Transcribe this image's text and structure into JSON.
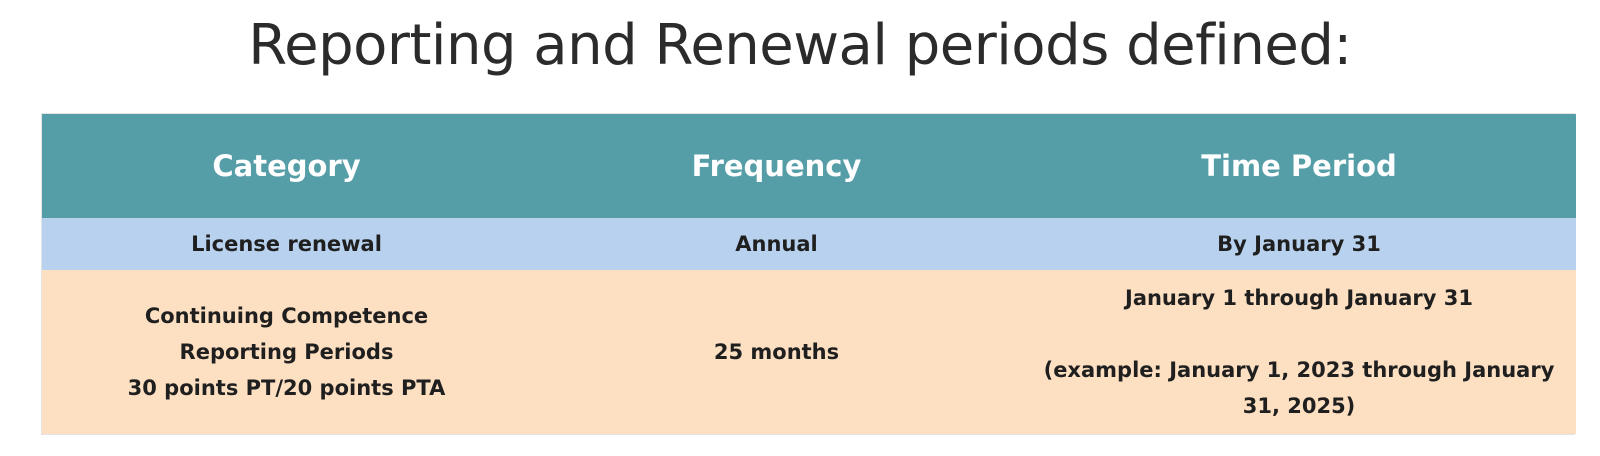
{
  "title": "Reporting and Renewal periods defined:",
  "table": {
    "headers": [
      "Category",
      "Frequency",
      "Time Period"
    ],
    "rows": [
      {
        "category": [
          "License renewal"
        ],
        "frequency": "Annual",
        "time_period": [
          "By January 31"
        ]
      },
      {
        "category": [
          "Continuing Competence Reporting Periods",
          "30 points PT/20 points PTA"
        ],
        "frequency": "25 months",
        "time_period": [
          "January 1 through January 31",
          "(example: January 1, 2023 through January 31, 2025)"
        ]
      }
    ]
  },
  "colors": {
    "header_bg": "#559ea8",
    "header_text": "#ffffff",
    "row1_bg": "#b7d1ee",
    "row2_bg": "#fddfc2"
  }
}
